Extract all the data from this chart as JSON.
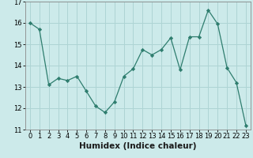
{
  "title": "",
  "xlabel": "Humidex (Indice chaleur)",
  "ylabel": "",
  "x_values": [
    0,
    1,
    2,
    3,
    4,
    5,
    6,
    7,
    8,
    9,
    10,
    11,
    12,
    13,
    14,
    15,
    16,
    17,
    18,
    19,
    20,
    21,
    22,
    23
  ],
  "y_values": [
    16.0,
    15.7,
    13.1,
    13.4,
    13.3,
    13.5,
    12.8,
    12.1,
    11.8,
    12.3,
    13.5,
    13.85,
    14.75,
    14.5,
    14.75,
    15.3,
    13.8,
    15.35,
    15.35,
    16.6,
    15.95,
    13.9,
    13.2,
    11.2
  ],
  "line_color": "#2e7d6e",
  "marker_color": "#2e7d6e",
  "bg_color": "#cceaea",
  "grid_color": "#aed4d4",
  "ylim": [
    11,
    17
  ],
  "xlim": [
    -0.5,
    23.5
  ],
  "yticks": [
    11,
    12,
    13,
    14,
    15,
    16,
    17
  ],
  "xticks": [
    0,
    1,
    2,
    3,
    4,
    5,
    6,
    7,
    8,
    9,
    10,
    11,
    12,
    13,
    14,
    15,
    16,
    17,
    18,
    19,
    20,
    21,
    22,
    23
  ],
  "label_fontsize": 7.5,
  "tick_fontsize": 6.0
}
